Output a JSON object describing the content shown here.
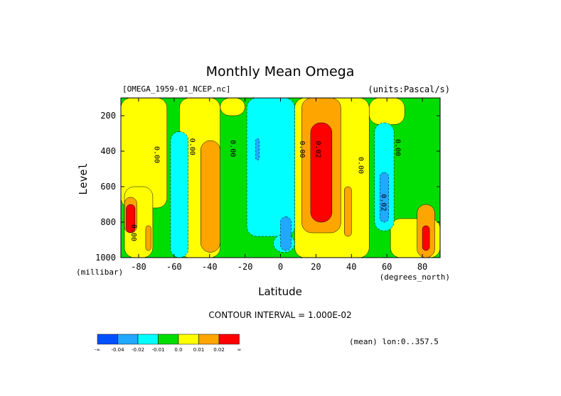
{
  "chart_data": {
    "type": "heatmap",
    "title": "Monthly Mean Omega",
    "dataset": "[OMEGA_1959-01_NCEP.nc]",
    "units": "(units:Pascal/s)",
    "xlabel": "Latitude",
    "xunits": "(degrees_north)",
    "ylabel": "Level",
    "yunits": "(millibar)",
    "x_ticks": [
      -80,
      -60,
      -40,
      -20,
      0,
      20,
      40,
      60,
      80
    ],
    "x_tick_labels": [
      "-80",
      "-60",
      "-40",
      "-20",
      "0",
      "20",
      "40",
      "60",
      "80"
    ],
    "y_ticks": [
      200,
      400,
      600,
      800,
      1000
    ],
    "y_tick_labels": [
      "200",
      "400",
      "600",
      "800",
      "1000"
    ],
    "xlim": [
      -90,
      90
    ],
    "ylim": [
      1000,
      100
    ],
    "contour_interval_text": "CONTOUR INTERVAL = 1.000E-02",
    "footer_text": "(mean) lon:0..357.5",
    "contour_labels": [
      {
        "text": "0.00",
        "x": -71,
        "y": 420,
        "rotate": true
      },
      {
        "text": "0.00",
        "x": -51,
        "y": 375,
        "rotate": true
      },
      {
        "text": "0.00",
        "x": -28,
        "y": 385,
        "rotate": true
      },
      {
        "text": "0.00",
        "x": 11,
        "y": 390,
        "rotate": true
      },
      {
        "text": "0.02",
        "x": 20,
        "y": 390,
        "rotate": true
      },
      {
        "text": "0.00",
        "x": 44,
        "y": 480,
        "rotate": true
      },
      {
        "text": "0.02",
        "x": 57,
        "y": 690,
        "rotate": true
      },
      {
        "text": "0.00",
        "x": 65,
        "y": 380,
        "rotate": true
      },
      {
        "text": "0.00",
        "x": -84,
        "y": 860,
        "rotate": true
      }
    ],
    "colorbar": {
      "colors": [
        "#0050ff",
        "#22a8ff",
        "#00ffff",
        "#00dd00",
        "#ffff00",
        "#ffa500",
        "#ff0000"
      ],
      "labels": [
        "-∞",
        "-0.04",
        "-0.02",
        "-0.01",
        "0.0",
        "0.01",
        "0.02",
        "∞"
      ]
    },
    "regions": [
      {
        "level": "green",
        "color": "#00dd00",
        "x0": -90,
        "x1": 90,
        "y0": 100,
        "y1": 1000
      },
      {
        "level": "yellow",
        "color": "#ffff00",
        "x0": -90,
        "x1": -64,
        "y0": 100,
        "y1": 720
      },
      {
        "level": "yellow",
        "color": "#ffff00",
        "x0": -57,
        "x1": -34,
        "y0": 100,
        "y1": 1000
      },
      {
        "level": "yellow",
        "color": "#ffff00",
        "x0": -34,
        "x1": -20,
        "y0": 100,
        "y1": 200
      },
      {
        "level": "yellow",
        "color": "#ffff00",
        "x0": 8,
        "x1": 50,
        "y0": 100,
        "y1": 1000
      },
      {
        "level": "yellow",
        "color": "#ffff00",
        "x0": 50,
        "x1": 70,
        "y0": 100,
        "y1": 250
      },
      {
        "level": "yellow",
        "color": "#ffff00",
        "x0": 62,
        "x1": 90,
        "y0": 780,
        "y1": 1000
      },
      {
        "level": "yellow",
        "color": "#ffff00",
        "x0": -88,
        "x1": -72,
        "y0": 600,
        "y1": 1000
      },
      {
        "level": "cyan",
        "color": "#00ffff",
        "x0": -62,
        "x1": -52,
        "y0": 290,
        "y1": 1000
      },
      {
        "level": "cyan",
        "color": "#00ffff",
        "x0": -19,
        "x1": 8,
        "y0": 100,
        "y1": 880
      },
      {
        "level": "cyan",
        "color": "#00ffff",
        "x0": -4,
        "x1": 8,
        "y0": 870,
        "y1": 970
      },
      {
        "level": "cyan",
        "color": "#00ffff",
        "x0": 53,
        "x1": 64,
        "y0": 240,
        "y1": 850
      },
      {
        "level": "orange",
        "color": "#ffa500",
        "x0": -45,
        "x1": -34,
        "y0": 340,
        "y1": 970
      },
      {
        "level": "orange",
        "color": "#ffa500",
        "x0": 12,
        "x1": 34,
        "y0": 100,
        "y1": 860
      },
      {
        "level": "orange",
        "color": "#ffa500",
        "x0": 36,
        "x1": 40,
        "y0": 600,
        "y1": 880
      },
      {
        "level": "orange",
        "color": "#ffa500",
        "x0": 77,
        "x1": 87,
        "y0": 700,
        "y1": 1000
      },
      {
        "level": "orange",
        "color": "#ffa500",
        "x0": -88,
        "x1": -81,
        "y0": 660,
        "y1": 860
      },
      {
        "level": "orange",
        "color": "#ffa500",
        "x0": -76,
        "x1": -73,
        "y0": 820,
        "y1": 960
      },
      {
        "level": "blue",
        "color": "#22a8ff",
        "x0": -14,
        "x1": -12,
        "y0": 330,
        "y1": 450
      },
      {
        "level": "blue",
        "color": "#22a8ff",
        "x0": 0,
        "x1": 6,
        "y0": 770,
        "y1": 960
      },
      {
        "level": "blue",
        "color": "#22a8ff",
        "x0": 56,
        "x1": 61,
        "y0": 520,
        "y1": 800
      },
      {
        "level": "red",
        "color": "#ff0000",
        "x0": 17,
        "x1": 29,
        "y0": 240,
        "y1": 800
      },
      {
        "level": "red",
        "color": "#ff0000",
        "x0": 80,
        "x1": 84,
        "y0": 820,
        "y1": 960
      },
      {
        "level": "red",
        "color": "#ff0000",
        "x0": -87,
        "x1": -82,
        "y0": 700,
        "y1": 860
      }
    ]
  }
}
